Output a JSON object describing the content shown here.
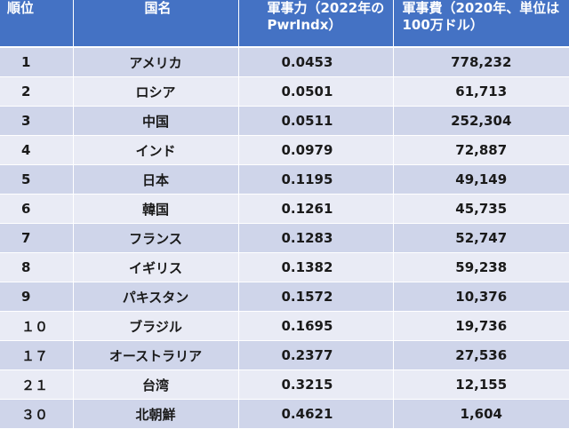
{
  "headers": {
    "rank": "順位",
    "country": "国名",
    "power": "軍事力（2022年のPwrIndx）",
    "expenditure": "軍事費（2020年、単位は100万ドル）"
  },
  "rows": [
    {
      "rank": "1",
      "country": "アメリカ",
      "pwr": "0.0453",
      "exp": "778,232"
    },
    {
      "rank": "2",
      "country": "ロシア",
      "pwr": "0.0501",
      "exp": "61,713"
    },
    {
      "rank": "3",
      "country": "中国",
      "pwr": "0.0511",
      "exp": "252,304"
    },
    {
      "rank": "4",
      "country": "インド",
      "pwr": "0.0979",
      "exp": "72,887"
    },
    {
      "rank": "5",
      "country": "日本",
      "pwr": "0.1195",
      "exp": "49,149"
    },
    {
      "rank": "6",
      "country": "韓国",
      "pwr": "0.1261",
      "exp": "45,735"
    },
    {
      "rank": "7",
      "country": "フランス",
      "pwr": "0.1283",
      "exp": "52,747"
    },
    {
      "rank": "8",
      "country": "イギリス",
      "pwr": "0.1382",
      "exp": "59,238"
    },
    {
      "rank": "9",
      "country": "パキスタン",
      "pwr": "0.1572",
      "exp": "10,376"
    },
    {
      "rank": "１０",
      "country": "ブラジル",
      "pwr": "0.1695",
      "exp": "19,736"
    },
    {
      "rank": "１７",
      "country": "オーストラリア",
      "pwr": "0.2377",
      "exp": "27,536"
    },
    {
      "rank": "２１",
      "country": "台湾",
      "pwr": "0.3215",
      "exp": "12,155"
    },
    {
      "rank": "３０",
      "country": "北朝鮮",
      "pwr": "0.4621",
      "exp": "1,604"
    }
  ],
  "colors": {
    "header_bg": "#4472c4",
    "row_dark": "#cfd5ea",
    "row_light": "#e9ebf5"
  }
}
